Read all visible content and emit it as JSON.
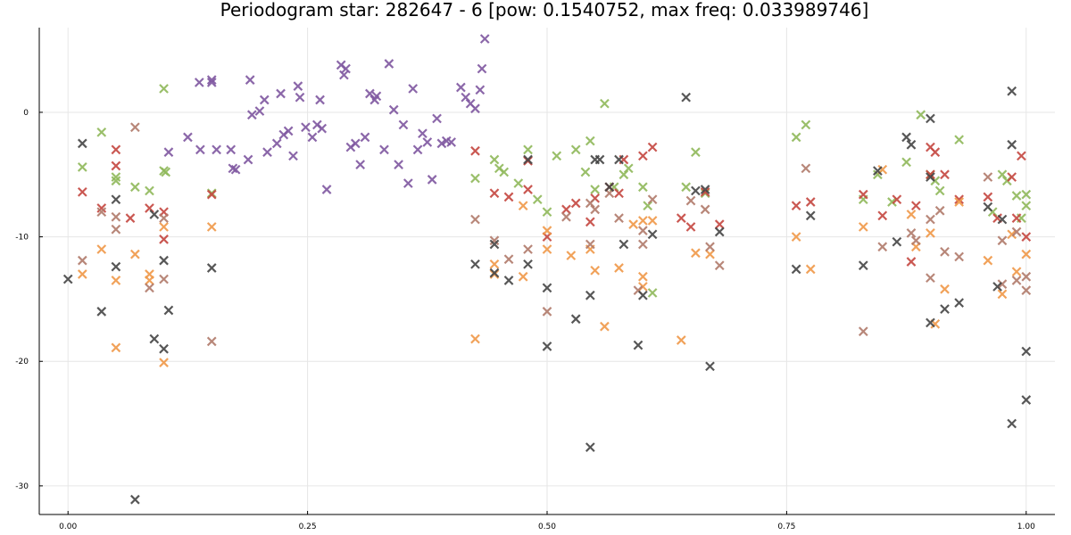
{
  "chart_data": {
    "type": "scatter",
    "title": "Periodogram star: 282647 - 6 [pow: 0.1540752, max freq: 0.033989746]",
    "xlabel": "",
    "ylabel": "",
    "xlim": [
      -0.03,
      1.03
    ],
    "ylim": [
      -32.3,
      6.8
    ],
    "grid": true,
    "legend": "none",
    "x_ticks": [
      {
        "value": 0.0,
        "label": "0.00"
      },
      {
        "value": 0.25,
        "label": "0.25"
      },
      {
        "value": 0.5,
        "label": "0.50"
      },
      {
        "value": 0.75,
        "label": "0.75"
      },
      {
        "value": 1.0,
        "label": "1.00"
      }
    ],
    "y_ticks": [
      {
        "value": 0,
        "label": "0"
      },
      {
        "value": -10,
        "label": "-10"
      },
      {
        "value": -20,
        "label": "-20"
      },
      {
        "value": -30,
        "label": "-30"
      }
    ],
    "series": [
      {
        "color": "#7e57a0",
        "points": [
          [
            0.15,
            2.4
          ],
          [
            0.137,
            2.4
          ],
          [
            0.15,
            2.6
          ],
          [
            0.125,
            -2.0
          ],
          [
            0.138,
            -3.0
          ],
          [
            0.105,
            -3.2
          ],
          [
            0.155,
            -3.0
          ],
          [
            0.17,
            -3.0
          ],
          [
            0.172,
            -4.5
          ],
          [
            0.175,
            -4.6
          ],
          [
            0.188,
            -3.8
          ],
          [
            0.19,
            2.6
          ],
          [
            0.192,
            -0.2
          ],
          [
            0.2,
            0.1
          ],
          [
            0.205,
            1.0
          ],
          [
            0.208,
            -3.2
          ],
          [
            0.218,
            -2.5
          ],
          [
            0.222,
            1.5
          ],
          [
            0.225,
            -1.8
          ],
          [
            0.23,
            -1.5
          ],
          [
            0.235,
            -3.5
          ],
          [
            0.24,
            2.1
          ],
          [
            0.242,
            1.2
          ],
          [
            0.248,
            -1.2
          ],
          [
            0.255,
            -2.0
          ],
          [
            0.26,
            -1.0
          ],
          [
            0.263,
            1.0
          ],
          [
            0.265,
            -1.3
          ],
          [
            0.27,
            -6.2
          ],
          [
            0.285,
            3.8
          ],
          [
            0.288,
            3.0
          ],
          [
            0.29,
            3.5
          ],
          [
            0.295,
            -2.8
          ],
          [
            0.3,
            -2.5
          ],
          [
            0.305,
            -4.2
          ],
          [
            0.31,
            -2.0
          ],
          [
            0.315,
            1.5
          ],
          [
            0.32,
            1.0
          ],
          [
            0.322,
            1.3
          ],
          [
            0.33,
            -3.0
          ],
          [
            0.335,
            3.9
          ],
          [
            0.34,
            0.2
          ],
          [
            0.345,
            -4.2
          ],
          [
            0.35,
            -1.0
          ],
          [
            0.355,
            -5.7
          ],
          [
            0.36,
            1.9
          ],
          [
            0.365,
            -3.0
          ],
          [
            0.37,
            -1.7
          ],
          [
            0.375,
            -2.4
          ],
          [
            0.38,
            -5.4
          ],
          [
            0.385,
            -0.5
          ],
          [
            0.39,
            -2.5
          ],
          [
            0.395,
            -2.3
          ],
          [
            0.4,
            -2.4
          ],
          [
            0.41,
            2.0
          ],
          [
            0.415,
            1.2
          ],
          [
            0.42,
            0.7
          ],
          [
            0.425,
            0.3
          ],
          [
            0.43,
            1.8
          ],
          [
            0.432,
            3.5
          ],
          [
            0.435,
            5.9
          ]
        ]
      },
      {
        "color": "#8fb85a",
        "points": [
          [
            0.015,
            -4.4
          ],
          [
            0.035,
            -1.6
          ],
          [
            0.05,
            -5.2
          ],
          [
            0.05,
            -5.5
          ],
          [
            0.07,
            -6.0
          ],
          [
            0.085,
            -6.3
          ],
          [
            0.1,
            1.9
          ],
          [
            0.1,
            -4.7
          ],
          [
            0.102,
            -4.8
          ],
          [
            0.15,
            -6.5
          ],
          [
            0.425,
            -5.3
          ],
          [
            0.445,
            -3.8
          ],
          [
            0.45,
            -4.5
          ],
          [
            0.455,
            -4.8
          ],
          [
            0.47,
            -5.7
          ],
          [
            0.48,
            -3.0
          ],
          [
            0.49,
            -7.0
          ],
          [
            0.5,
            -8.0
          ],
          [
            0.51,
            -3.5
          ],
          [
            0.53,
            -3.0
          ],
          [
            0.54,
            -4.8
          ],
          [
            0.545,
            -2.3
          ],
          [
            0.55,
            -6.2
          ],
          [
            0.56,
            0.7
          ],
          [
            0.57,
            -6.0
          ],
          [
            0.58,
            -5.0
          ],
          [
            0.585,
            -4.5
          ],
          [
            0.6,
            -6.0
          ],
          [
            0.605,
            -7.5
          ],
          [
            0.61,
            -14.5
          ],
          [
            0.645,
            -6.0
          ],
          [
            0.655,
            -3.2
          ],
          [
            0.665,
            -6.5
          ],
          [
            0.76,
            -2.0
          ],
          [
            0.77,
            -1.0
          ],
          [
            0.83,
            -7.0
          ],
          [
            0.845,
            -5.0
          ],
          [
            0.86,
            -7.2
          ],
          [
            0.875,
            -4.0
          ],
          [
            0.89,
            -0.2
          ],
          [
            0.9,
            -5.0
          ],
          [
            0.905,
            -5.5
          ],
          [
            0.91,
            -6.3
          ],
          [
            0.93,
            -2.2
          ],
          [
            0.965,
            -8.0
          ],
          [
            0.975,
            -5.0
          ],
          [
            0.98,
            -5.5
          ],
          [
            0.99,
            -6.7
          ],
          [
            0.995,
            -8.5
          ],
          [
            1.0,
            -6.6
          ],
          [
            1.0,
            -7.5
          ]
        ]
      },
      {
        "color": "#c4463f",
        "points": [
          [
            0.015,
            -6.4
          ],
          [
            0.035,
            -7.7
          ],
          [
            0.05,
            -3.0
          ],
          [
            0.05,
            -4.3
          ],
          [
            0.065,
            -8.5
          ],
          [
            0.085,
            -7.7
          ],
          [
            0.1,
            -8.0
          ],
          [
            0.1,
            -10.2
          ],
          [
            0.15,
            -6.6
          ],
          [
            0.425,
            -3.1
          ],
          [
            0.445,
            -6.5
          ],
          [
            0.46,
            -6.8
          ],
          [
            0.48,
            -6.2
          ],
          [
            0.48,
            -3.9
          ],
          [
            0.5,
            -10.0
          ],
          [
            0.52,
            -7.8
          ],
          [
            0.53,
            -7.3
          ],
          [
            0.545,
            -8.8
          ],
          [
            0.55,
            -6.9
          ],
          [
            0.565,
            -6.0
          ],
          [
            0.575,
            -6.5
          ],
          [
            0.58,
            -3.8
          ],
          [
            0.6,
            -3.5
          ],
          [
            0.61,
            -2.8
          ],
          [
            0.64,
            -8.5
          ],
          [
            0.65,
            -9.2
          ],
          [
            0.665,
            -6.4
          ],
          [
            0.68,
            -9.0
          ],
          [
            0.76,
            -7.5
          ],
          [
            0.775,
            -7.2
          ],
          [
            0.83,
            -6.6
          ],
          [
            0.85,
            -8.3
          ],
          [
            0.865,
            -7.0
          ],
          [
            0.88,
            -12.0
          ],
          [
            0.885,
            -7.5
          ],
          [
            0.9,
            -2.8
          ],
          [
            0.9,
            -5.0
          ],
          [
            0.905,
            -3.2
          ],
          [
            0.915,
            -5.0
          ],
          [
            0.93,
            -7.0
          ],
          [
            0.96,
            -6.8
          ],
          [
            0.97,
            -8.5
          ],
          [
            0.985,
            -5.2
          ],
          [
            0.99,
            -8.5
          ],
          [
            0.995,
            -3.5
          ],
          [
            1.0,
            -10.0
          ]
        ]
      },
      {
        "color": "#f09848",
        "points": [
          [
            0.015,
            -13.0
          ],
          [
            0.035,
            -11.0
          ],
          [
            0.05,
            -13.5
          ],
          [
            0.05,
            -18.9
          ],
          [
            0.07,
            -11.4
          ],
          [
            0.085,
            -13.0
          ],
          [
            0.085,
            -13.5
          ],
          [
            0.1,
            -9.2
          ],
          [
            0.1,
            -20.1
          ],
          [
            0.15,
            -9.2
          ],
          [
            0.425,
            -18.2
          ],
          [
            0.445,
            -13.0
          ],
          [
            0.445,
            -12.2
          ],
          [
            0.475,
            -13.2
          ],
          [
            0.475,
            -7.5
          ],
          [
            0.5,
            -9.5
          ],
          [
            0.5,
            -11.0
          ],
          [
            0.525,
            -11.5
          ],
          [
            0.545,
            -11.0
          ],
          [
            0.55,
            -12.7
          ],
          [
            0.56,
            -17.2
          ],
          [
            0.575,
            -12.5
          ],
          [
            0.59,
            -9.0
          ],
          [
            0.6,
            -13.2
          ],
          [
            0.6,
            -14.0
          ],
          [
            0.6,
            -8.7
          ],
          [
            0.61,
            -8.7
          ],
          [
            0.64,
            -18.3
          ],
          [
            0.655,
            -11.3
          ],
          [
            0.67,
            -11.4
          ],
          [
            0.76,
            -10.0
          ],
          [
            0.775,
            -12.6
          ],
          [
            0.83,
            -9.2
          ],
          [
            0.85,
            -4.6
          ],
          [
            0.88,
            -8.2
          ],
          [
            0.885,
            -10.8
          ],
          [
            0.9,
            -9.7
          ],
          [
            0.905,
            -17.0
          ],
          [
            0.915,
            -14.2
          ],
          [
            0.93,
            -7.2
          ],
          [
            0.96,
            -11.9
          ],
          [
            0.975,
            -14.6
          ],
          [
            0.985,
            -9.8
          ],
          [
            0.99,
            -12.8
          ],
          [
            1.0,
            -11.4
          ]
        ]
      },
      {
        "color": "#b07a6a",
        "points": [
          [
            0.015,
            -11.9
          ],
          [
            0.035,
            -8.0
          ],
          [
            0.05,
            -8.4
          ],
          [
            0.05,
            -9.4
          ],
          [
            0.07,
            -1.2
          ],
          [
            0.085,
            -14.1
          ],
          [
            0.1,
            -8.5
          ],
          [
            0.1,
            -13.4
          ],
          [
            0.15,
            -18.4
          ],
          [
            0.425,
            -8.6
          ],
          [
            0.445,
            -10.3
          ],
          [
            0.46,
            -11.8
          ],
          [
            0.48,
            -11.0
          ],
          [
            0.5,
            -16.0
          ],
          [
            0.52,
            -8.4
          ],
          [
            0.545,
            -7.3
          ],
          [
            0.545,
            -10.6
          ],
          [
            0.55,
            -7.8
          ],
          [
            0.565,
            -6.5
          ],
          [
            0.575,
            -8.5
          ],
          [
            0.595,
            -14.3
          ],
          [
            0.6,
            -9.5
          ],
          [
            0.6,
            -10.6
          ],
          [
            0.61,
            -7.0
          ],
          [
            0.65,
            -7.1
          ],
          [
            0.665,
            -7.8
          ],
          [
            0.67,
            -10.8
          ],
          [
            0.68,
            -12.3
          ],
          [
            0.77,
            -4.5
          ],
          [
            0.83,
            -17.6
          ],
          [
            0.85,
            -10.8
          ],
          [
            0.88,
            -9.7
          ],
          [
            0.885,
            -10.3
          ],
          [
            0.9,
            -8.6
          ],
          [
            0.9,
            -13.3
          ],
          [
            0.91,
            -7.9
          ],
          [
            0.915,
            -11.2
          ],
          [
            0.93,
            -11.6
          ],
          [
            0.96,
            -5.2
          ],
          [
            0.975,
            -10.3
          ],
          [
            0.975,
            -13.8
          ],
          [
            0.99,
            -9.6
          ],
          [
            0.99,
            -13.5
          ],
          [
            1.0,
            -13.2
          ],
          [
            1.0,
            -14.3
          ]
        ]
      },
      {
        "color": "#454545",
        "points": [
          [
            0.0,
            -13.4
          ],
          [
            0.015,
            -2.5
          ],
          [
            0.035,
            -16.0
          ],
          [
            0.05,
            -7.0
          ],
          [
            0.05,
            -12.4
          ],
          [
            0.07,
            -31.1
          ],
          [
            0.09,
            -8.2
          ],
          [
            0.09,
            -18.2
          ],
          [
            0.1,
            -11.9
          ],
          [
            0.105,
            -15.9
          ],
          [
            0.1,
            -19.0
          ],
          [
            0.15,
            -12.5
          ],
          [
            0.425,
            -12.2
          ],
          [
            0.445,
            -12.9
          ],
          [
            0.445,
            -10.6
          ],
          [
            0.46,
            -13.5
          ],
          [
            0.48,
            -3.8
          ],
          [
            0.48,
            -12.2
          ],
          [
            0.5,
            -14.1
          ],
          [
            0.5,
            -18.8
          ],
          [
            0.53,
            -16.6
          ],
          [
            0.545,
            -14.7
          ],
          [
            0.545,
            -26.9
          ],
          [
            0.55,
            -3.8
          ],
          [
            0.555,
            -3.8
          ],
          [
            0.565,
            -6.0
          ],
          [
            0.575,
            -3.8
          ],
          [
            0.58,
            -10.6
          ],
          [
            0.595,
            -18.7
          ],
          [
            0.6,
            -14.7
          ],
          [
            0.61,
            -9.8
          ],
          [
            0.645,
            1.2
          ],
          [
            0.655,
            -6.3
          ],
          [
            0.665,
            -6.2
          ],
          [
            0.67,
            -20.4
          ],
          [
            0.68,
            -9.6
          ],
          [
            0.76,
            -12.6
          ],
          [
            0.775,
            -8.3
          ],
          [
            0.83,
            -12.3
          ],
          [
            0.845,
            -4.7
          ],
          [
            0.865,
            -10.4
          ],
          [
            0.875,
            -2.0
          ],
          [
            0.88,
            -2.6
          ],
          [
            0.9,
            -0.5
          ],
          [
            0.9,
            -5.2
          ],
          [
            0.9,
            -16.9
          ],
          [
            0.915,
            -15.8
          ],
          [
            0.93,
            -15.3
          ],
          [
            0.96,
            -7.6
          ],
          [
            0.97,
            -14.0
          ],
          [
            0.975,
            -8.6
          ],
          [
            0.985,
            1.7
          ],
          [
            0.985,
            -2.6
          ],
          [
            0.985,
            -25.0
          ],
          [
            1.0,
            -19.2
          ],
          [
            1.0,
            -23.1
          ]
        ]
      }
    ]
  }
}
